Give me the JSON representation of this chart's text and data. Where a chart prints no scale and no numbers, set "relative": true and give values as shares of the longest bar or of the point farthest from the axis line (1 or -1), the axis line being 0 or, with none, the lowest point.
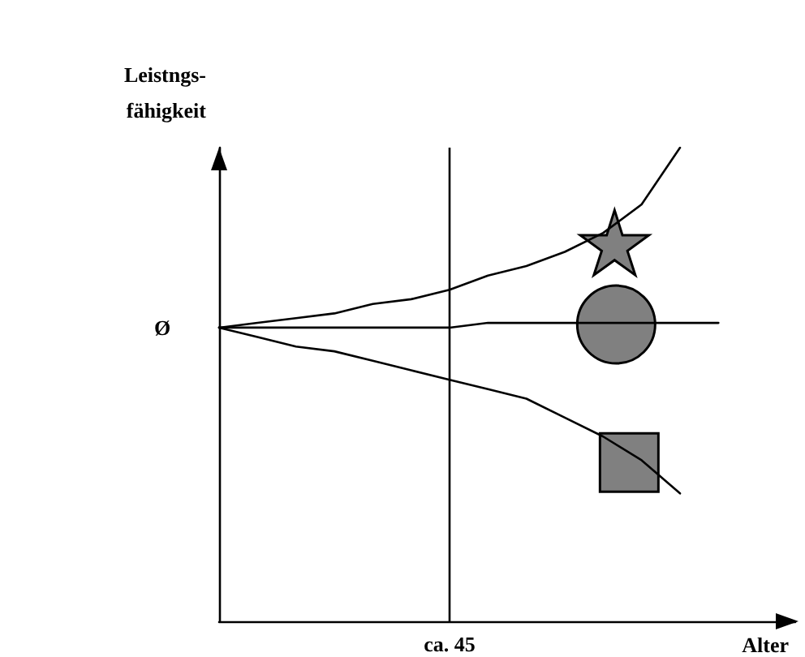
{
  "chart_data": {
    "type": "line",
    "relative": true,
    "xlabel": "Alter",
    "ylabel": "Leistngs-\nfähigkeit",
    "grid": false,
    "marker": "none",
    "categories": [
      null,
      null,
      null,
      null,
      null,
      null,
      null,
      null,
      null,
      null,
      null,
      null,
      null,
      null,
      null,
      null
    ],
    "series": [
      {
        "color": "#000000",
        "values": [
          0.62,
          0.63,
          0.64,
          0.65,
          0.67,
          0.68,
          0.7,
          0.73,
          0.75,
          0.78,
          0.82,
          0.88,
          1.0,
          null,
          null,
          null
        ]
      },
      {
        "color": "#000000",
        "values": [
          0.62,
          0.62,
          0.62,
          0.62,
          0.62,
          0.62,
          0.62,
          0.63,
          0.63,
          0.63,
          0.63,
          0.63,
          0.63,
          0.63,
          null,
          null
        ]
      },
      {
        "color": "#000000",
        "values": [
          0.62,
          0.6,
          0.58,
          0.57,
          0.55,
          0.53,
          0.51,
          0.49,
          0.47,
          0.43,
          0.39,
          0.34,
          0.27,
          null,
          null,
          null
        ]
      }
    ],
    "annotations": [
      "Ø",
      "ca. 45"
    ]
  }
}
